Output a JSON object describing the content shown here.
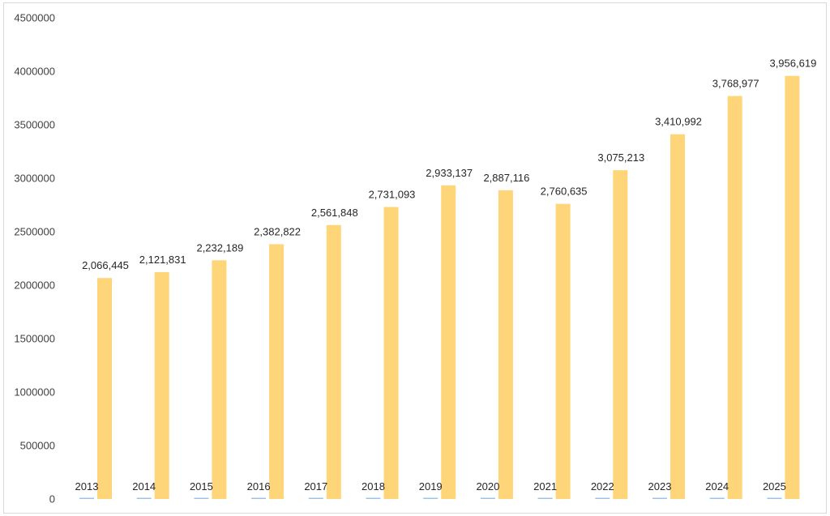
{
  "chart_data": {
    "type": "bar",
    "title": "",
    "xlabel": "",
    "ylabel": "",
    "ylim": [
      0,
      4500000
    ],
    "yticks": [
      0,
      500000,
      1000000,
      1500000,
      2000000,
      2500000,
      3000000,
      3500000,
      4000000,
      4500000
    ],
    "ytick_labels": [
      "0",
      "500000",
      "1000000",
      "1500000",
      "2000000",
      "2500000",
      "3000000",
      "3500000",
      "4000000",
      "4500000"
    ],
    "grid": false,
    "legend": "none",
    "categories": [
      "2013",
      "2014",
      "2015",
      "2016",
      "2017",
      "2018",
      "2019",
      "2020",
      "2021",
      "2022",
      "2023",
      "2024",
      "2025"
    ],
    "series": [
      {
        "values": [
          0,
          0,
          0,
          0,
          0,
          0,
          0,
          0,
          0,
          0,
          0,
          0,
          0
        ],
        "color": "#9dc3e6"
      },
      {
        "values": [
          2066445,
          2121831,
          2232189,
          2382822,
          2561848,
          2731093,
          2933137,
          2887116,
          2760635,
          3075213,
          3410992,
          3768977,
          3956619
        ],
        "data_labels": [
          "2,066,445",
          "2,121,831",
          "2,232,189",
          "2,382,822",
          "2,561,848",
          "2,731,093",
          "2,933,137",
          "2,887,116",
          "2,760,635",
          "3,075,213",
          "3,410,992",
          "3,768,977",
          "3,956,619"
        ],
        "color": "#ffd57a"
      }
    ]
  }
}
